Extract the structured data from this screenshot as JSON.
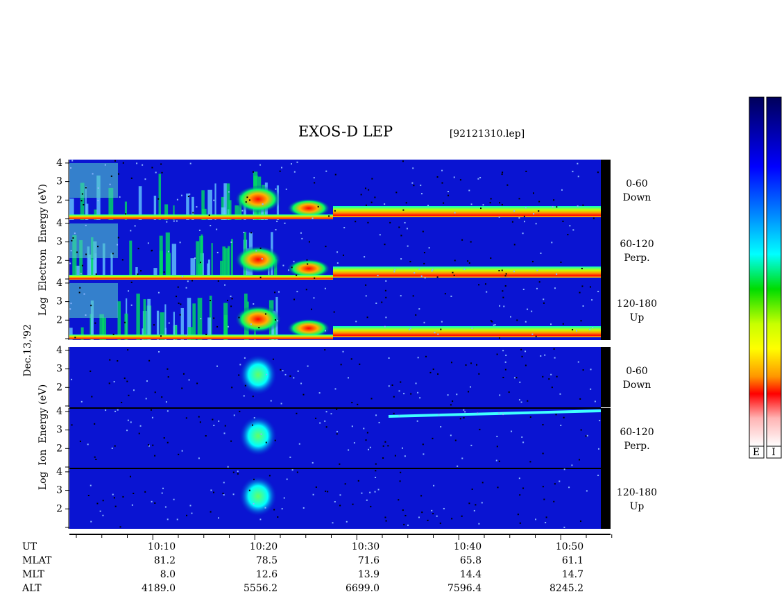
{
  "title": "EXOS-D LEP",
  "file": "[92121310.lep]",
  "date": "Dec.13,'92",
  "electron": {
    "ylabel": "Log  Electron  Energy (eV)",
    "panels": [
      {
        "angle": "0-60",
        "direction": "Down"
      },
      {
        "angle": "60-120",
        "direction": "Perp."
      },
      {
        "angle": "120-180",
        "direction": "Up"
      }
    ]
  },
  "ion": {
    "ylabel": "Log  Ion  Energy (eV)",
    "panels": [
      {
        "angle": "0-60",
        "direction": "Down"
      },
      {
        "angle": "60-120",
        "direction": "Perp."
      },
      {
        "angle": "120-180",
        "direction": "Up"
      }
    ]
  },
  "yticks": [
    2,
    3,
    4
  ],
  "ephemeris": [
    {
      "label": "UT",
      "values": [
        "10:10",
        "10:20",
        "10:30",
        "10:40",
        "10:50"
      ]
    },
    {
      "label": "MLAT",
      "values": [
        "81.2",
        "78.5",
        "71.6",
        "65.8",
        "61.1"
      ]
    },
    {
      "label": "MLT",
      "values": [
        "8.0",
        "12.6",
        "13.9",
        "14.4",
        "14.7"
      ]
    },
    {
      "label": "ALT",
      "values": [
        "4189.0",
        "5556.2",
        "6699.0",
        "7596.4",
        "8245.2"
      ]
    }
  ],
  "colorbars": [
    "E",
    "I"
  ]
}
